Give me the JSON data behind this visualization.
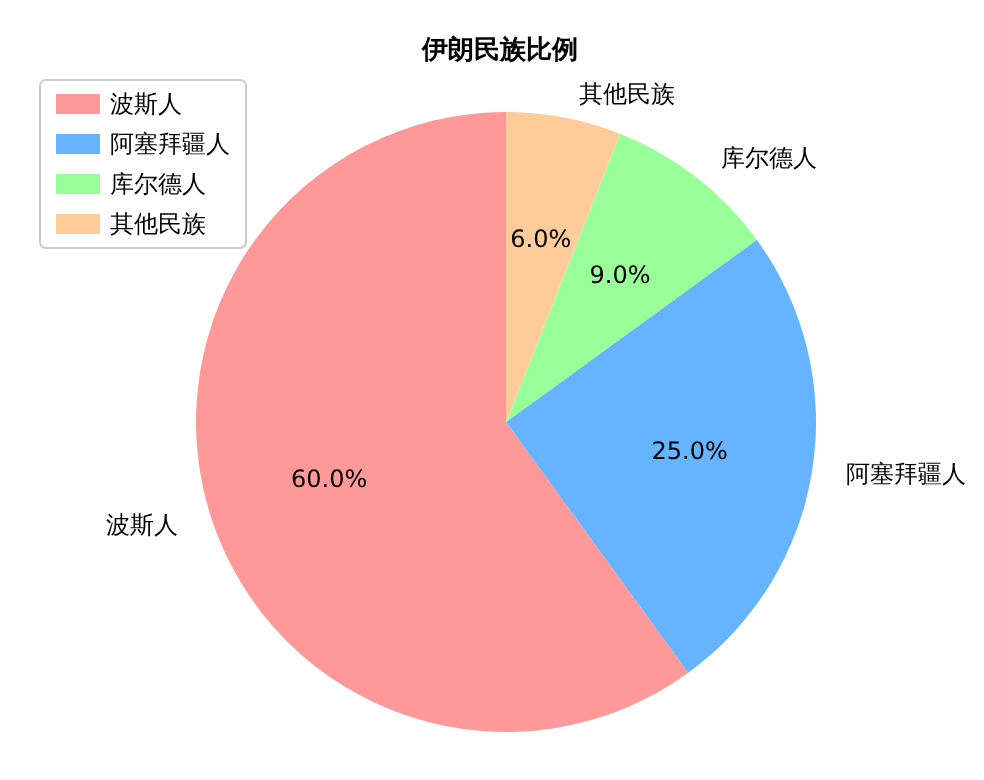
{
  "chart_data": {
    "type": "pie",
    "title": "伊朗民族比例",
    "categories": [
      "波斯人",
      "阿塞拜疆人",
      "库尔德人",
      "其他民族"
    ],
    "values": [
      60,
      25,
      9,
      6
    ],
    "colors": [
      "#ff9999",
      "#66b3ff",
      "#99ff99",
      "#ffcc99"
    ],
    "value_labels": [
      "60.0%",
      "25.0%",
      "9.0%",
      "6.0%"
    ],
    "legend": "top left"
  }
}
